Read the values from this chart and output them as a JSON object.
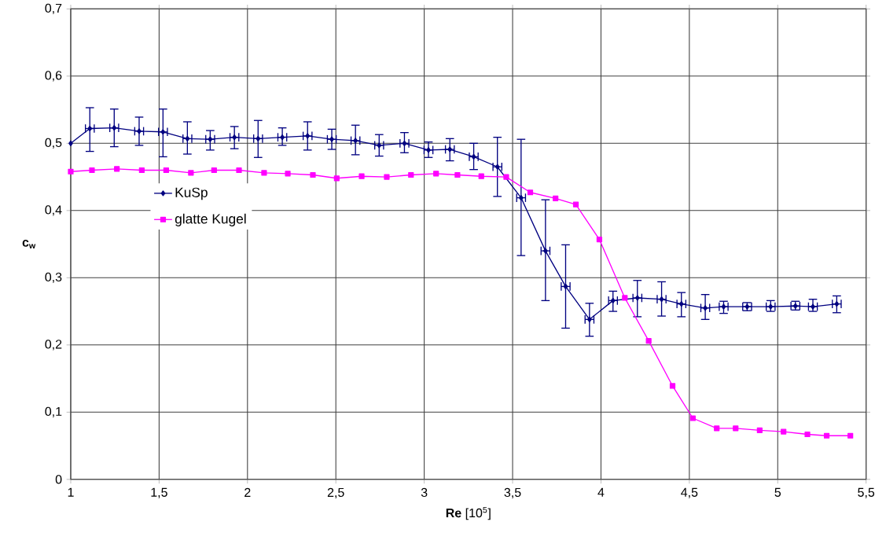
{
  "chart_data": {
    "type": "line",
    "xlabel": "**Re** [10$^{5}$]",
    "ylabel": "c$_{w}$",
    "xlim": [
      1,
      5.5
    ],
    "ylim": [
      0,
      0.7
    ],
    "xticks": [
      1,
      {
        "value": 1.5,
        "label": "1,5"
      },
      2,
      {
        "value": 2.5,
        "label": "2,5"
      },
      3,
      {
        "value": 3.5,
        "label": "3,5"
      },
      4,
      {
        "value": 4.5,
        "label": "4,5"
      },
      5,
      {
        "value": 5.5,
        "label": "5,5"
      }
    ],
    "yticks": [
      0,
      {
        "value": 0.1,
        "label": "0,1"
      },
      {
        "value": 0.2,
        "label": "0,2"
      },
      {
        "value": 0.3,
        "label": "0,3"
      },
      {
        "value": 0.4,
        "label": "0,4"
      },
      {
        "value": 0.5,
        "label": "0,5"
      },
      {
        "value": 0.6,
        "label": "0,6"
      },
      {
        "value": 0.7,
        "label": "0,7"
      }
    ],
    "grid": true,
    "legend": "left",
    "series": [
      {
        "name": "KuSp",
        "color": "#000080",
        "marker": "diamond",
        "x": [
          1,
          1.108,
          1.246,
          1.387,
          1.522,
          1.66,
          1.789,
          1.926,
          2.06,
          2.197,
          2.34,
          2.477,
          2.611,
          2.745,
          2.888,
          3.024,
          3.145,
          3.28,
          3.414,
          3.548,
          3.686,
          3.8,
          3.935,
          4.068,
          4.206,
          4.343,
          4.455,
          4.59,
          4.694,
          4.827,
          4.96,
          5.1,
          5.199,
          5.334
        ],
        "values": [
          0.5,
          0.522,
          0.523,
          0.518,
          0.517,
          0.507,
          0.506,
          0.509,
          0.507,
          0.509,
          0.511,
          0.506,
          0.504,
          0.497,
          0.5,
          0.49,
          0.491,
          0.48,
          0.465,
          0.419,
          0.34,
          0.287,
          0.238,
          0.266,
          0.27,
          0.268,
          0.261,
          0.255,
          0.257,
          0.257,
          0.257,
          0.258,
          0.257,
          0.261
        ],
        "errors": [
          null,
          [
            0.488,
            0.553
          ],
          [
            0.495,
            0.551
          ],
          [
            0.497,
            0.539
          ],
          [
            0.48,
            0.551
          ],
          [
            0.484,
            0.532
          ],
          [
            0.49,
            0.519
          ],
          [
            0.492,
            0.525
          ],
          [
            0.479,
            0.534
          ],
          [
            0.497,
            0.523
          ],
          [
            0.49,
            0.532
          ],
          [
            0.491,
            0.521
          ],
          [
            0.483,
            0.527
          ],
          [
            0.481,
            0.513
          ],
          [
            0.486,
            0.516
          ],
          [
            0.479,
            0.502
          ],
          [
            0.474,
            0.507
          ],
          [
            0.461,
            0.5
          ],
          [
            0.421,
            0.509
          ],
          [
            0.333,
            0.506
          ],
          [
            0.266,
            0.416
          ],
          [
            0.225,
            0.349
          ],
          [
            0.213,
            0.262
          ],
          [
            0.25,
            0.28
          ],
          [
            0.242,
            0.296
          ],
          [
            0.243,
            0.294
          ],
          [
            0.242,
            0.278
          ],
          [
            0.238,
            0.275
          ],
          [
            0.247,
            0.265
          ],
          [
            0.251,
            0.263
          ],
          [
            0.25,
            0.266
          ],
          [
            0.252,
            0.265
          ],
          [
            0.25,
            0.268
          ],
          [
            0.248,
            0.273
          ]
        ],
        "xerrors": [
          null,
          0.025,
          0.025,
          0.025,
          0.025,
          0.025,
          0.025,
          0.025,
          0.025,
          0.025,
          0.025,
          0.025,
          0.025,
          0.025,
          0.025,
          0.025,
          0.025,
          0.025,
          0.025,
          0.025,
          0.025,
          0.025,
          0.025,
          0.025,
          0.025,
          0.025,
          0.025,
          0.025,
          0.025,
          0.025,
          0.025,
          0.025,
          0.025,
          0.025
        ]
      },
      {
        "name": "glatte Kugel",
        "color": "#ff00ff",
        "marker": "square",
        "x": [
          1,
          1.12,
          1.261,
          1.402,
          1.54,
          1.68,
          1.811,
          1.952,
          2.094,
          2.228,
          2.37,
          2.505,
          2.646,
          2.788,
          2.925,
          3.067,
          3.188,
          3.323,
          3.464,
          3.6,
          3.743,
          3.858,
          3.991,
          4.135,
          4.27,
          4.405,
          4.52,
          4.655,
          4.762,
          4.898,
          5.033,
          5.168,
          5.277,
          5.411
        ],
        "values": [
          0.458,
          0.46,
          0.462,
          0.46,
          0.46,
          0.456,
          0.46,
          0.46,
          0.456,
          0.455,
          0.453,
          0.448,
          0.451,
          0.45,
          0.453,
          0.455,
          0.453,
          0.451,
          0.45,
          0.427,
          0.418,
          0.409,
          0.357,
          0.27,
          0.206,
          0.139,
          0.091,
          0.076,
          0.076,
          0.073,
          0.071,
          0.067,
          0.065,
          0.065
        ]
      }
    ]
  }
}
